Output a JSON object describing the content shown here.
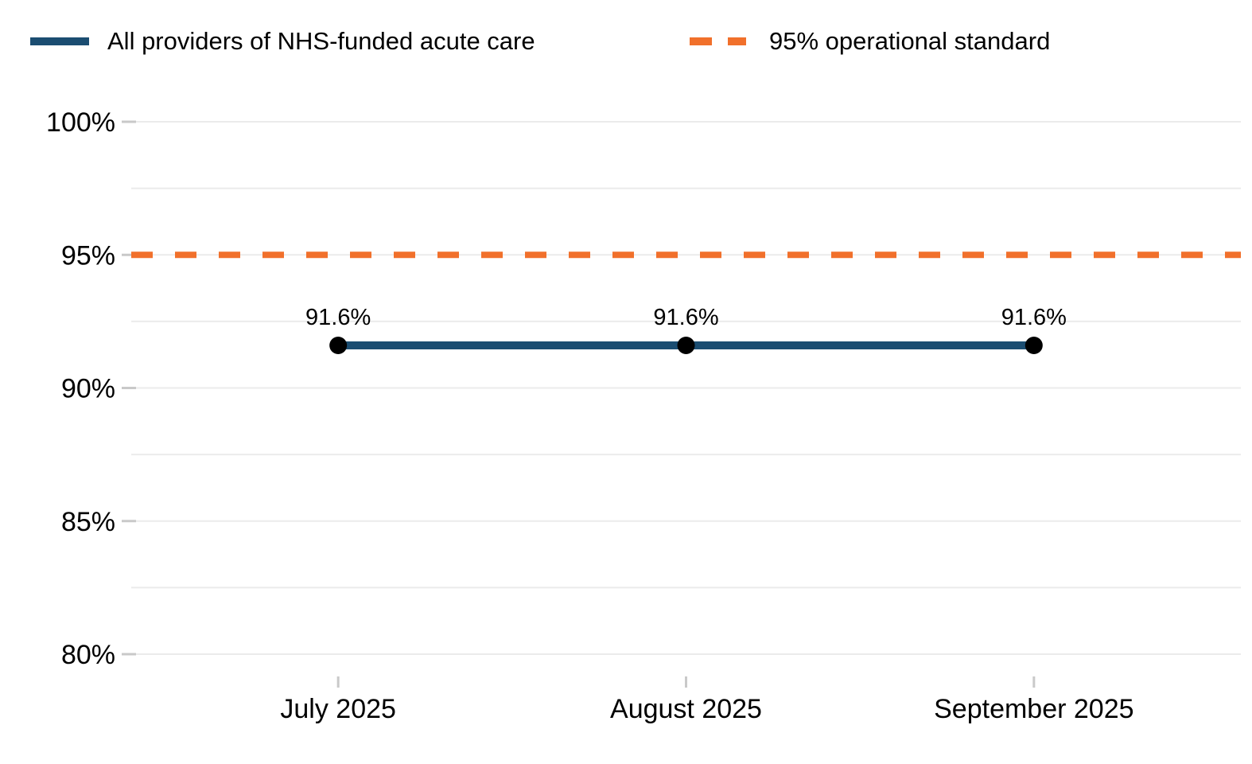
{
  "chart_data": {
    "type": "line",
    "title": "",
    "xlabel": "",
    "ylabel": "",
    "categories": [
      "July 2025",
      "August 2025",
      "September 2025"
    ],
    "series": [
      {
        "name": "All providers of NHS-funded acute care",
        "kind": "line",
        "values": [
          91.6,
          91.6,
          91.6
        ],
        "data_labels": [
          "91.6%",
          "91.6%",
          "91.6%"
        ],
        "color": "#1B4D71",
        "line_style": "solid",
        "marker": {
          "shape": "circle",
          "color": "#000000"
        }
      },
      {
        "name": "95% operational standard",
        "kind": "reference-line",
        "values": [
          95,
          95,
          95
        ],
        "color": "#F1702B",
        "line_style": "dashed"
      }
    ],
    "ylim": [
      80,
      100
    ],
    "yticks": [
      100,
      95,
      90,
      85,
      80
    ],
    "ytick_labels": [
      "100%",
      "95%",
      "90%",
      "85%",
      "80%"
    ],
    "minor_yticks": [
      97.5,
      92.5,
      87.5,
      82.5
    ],
    "grid": true,
    "legend_position": "top-left",
    "colors": {
      "gridline": "#EBEBEB",
      "tick_mark": "#C9C9C9",
      "axis_text": "#000000",
      "data_label_text": "#000000",
      "background": "#FFFFFF"
    }
  }
}
